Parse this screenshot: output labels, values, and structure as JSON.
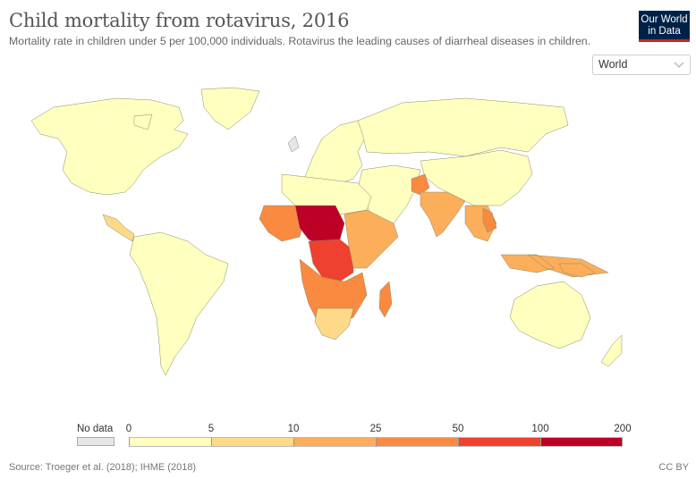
{
  "header": {
    "title": "Child mortality from rotavirus, 2016",
    "subtitle": "Mortality rate in children under 5 per 100,000 individuals. Rotavirus the leading causes of diarrheal diseases in children.",
    "logo_line1": "Our World",
    "logo_line2": "in Data"
  },
  "region_select": {
    "value": "World",
    "icon": "chevron-down-icon"
  },
  "colors": {
    "brand_navy": "#002147",
    "brand_red": "#ce261e",
    "no_data": "#e6e6e6",
    "bins": [
      "#ffffbf",
      "#fed987",
      "#fcae5b",
      "#f98a40",
      "#ee4130",
      "#bd0026"
    ]
  },
  "legend": {
    "no_data_label": "No data",
    "ticks": [
      "0",
      "5",
      "10",
      "25",
      "50",
      "100",
      "200"
    ]
  },
  "chart_data": {
    "type": "choropleth",
    "title": "Child mortality from rotavirus, 2016",
    "unit": "deaths per 100,000 children under 5",
    "bins": [
      {
        "min": 0,
        "max": 5,
        "color": "#ffffbf"
      },
      {
        "min": 5,
        "max": 10,
        "color": "#fed987"
      },
      {
        "min": 10,
        "max": 25,
        "color": "#fcae5b"
      },
      {
        "min": 25,
        "max": 50,
        "color": "#f98a40"
      },
      {
        "min": 50,
        "max": 100,
        "color": "#ee4130"
      },
      {
        "min": 100,
        "max": 200,
        "color": "#bd0026"
      }
    ],
    "regions": [
      {
        "name": "North America",
        "bin": 0
      },
      {
        "name": "Greenland",
        "bin": 0
      },
      {
        "name": "Central America",
        "bin": 1
      },
      {
        "name": "South America",
        "bin": 0
      },
      {
        "name": "Europe",
        "bin": 0
      },
      {
        "name": "United Kingdom",
        "bin": -1
      },
      {
        "name": "Russia",
        "bin": 0
      },
      {
        "name": "China",
        "bin": 0
      },
      {
        "name": "Middle East",
        "bin": 0
      },
      {
        "name": "Afghanistan",
        "bin": 3
      },
      {
        "name": "South Asia",
        "bin": 2
      },
      {
        "name": "Southeast Asia",
        "bin": 2
      },
      {
        "name": "Laos",
        "bin": 3
      },
      {
        "name": "North Africa",
        "bin": 0
      },
      {
        "name": "West Africa",
        "bin": 3
      },
      {
        "name": "Sahel (Niger, Chad, Nigeria)",
        "bin": 5
      },
      {
        "name": "Central Africa (DRC)",
        "bin": 4
      },
      {
        "name": "East Africa",
        "bin": 2
      },
      {
        "name": "Southern Africa",
        "bin": 3
      },
      {
        "name": "South Africa",
        "bin": 1
      },
      {
        "name": "Madagascar",
        "bin": 3
      },
      {
        "name": "Australia",
        "bin": 0
      },
      {
        "name": "New Zealand",
        "bin": 0
      },
      {
        "name": "Papua New Guinea",
        "bin": 2
      }
    ]
  },
  "footer": {
    "source": "Source: Troeger et al. (2018); IHME (2018)",
    "license": "CC BY"
  }
}
